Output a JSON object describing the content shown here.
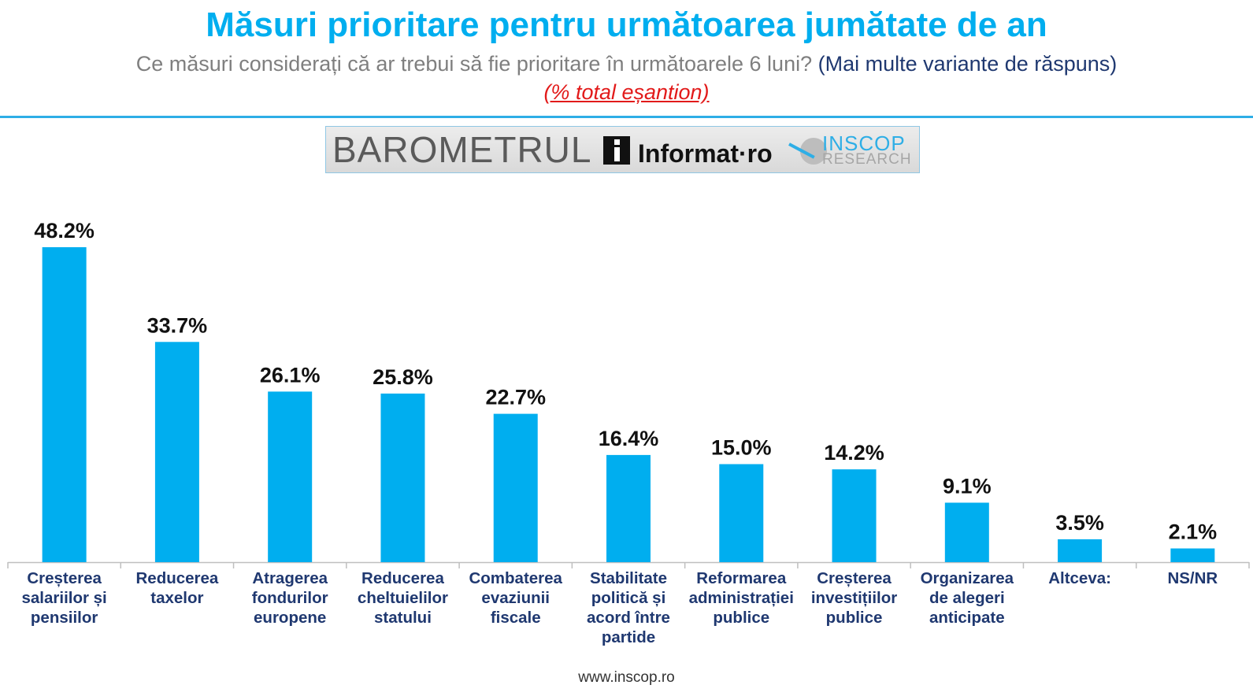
{
  "header": {
    "title": "Măsuri prioritare pentru următoarea jumătate de an",
    "subtitle_question": "Ce măsuri considerați că ar trebui să fie prioritare în următoarele 6 luni?",
    "subtitle_hint": "(Mai multe variante de răspuns)",
    "note": "(% total eșantion)"
  },
  "logos": {
    "barometrul": "BAROMETRUL",
    "informat": "Informat·ro",
    "inscop_brand": "INSCOP",
    "inscop_sub": "RESEARCH"
  },
  "footer": {
    "url": "www.inscop.ro"
  },
  "colors": {
    "bar": "#00aeef",
    "title": "#00aeef",
    "rule": "#2eaee6",
    "note": "#e21a1a"
  },
  "chart_data": {
    "type": "bar",
    "title": "Măsuri prioritare pentru următoarea jumătate de an",
    "xlabel": "",
    "ylabel": "",
    "ylim": [
      0,
      50
    ],
    "grid": false,
    "legend": "none",
    "categories": [
      [
        "Creșterea",
        "salariilor și",
        "pensiilor"
      ],
      [
        "Reducerea",
        "taxelor"
      ],
      [
        "Atragerea",
        "fondurilor",
        "europene"
      ],
      [
        "Reducerea",
        "cheltuielilor",
        "statului"
      ],
      [
        "Combaterea",
        "evaziunii",
        "fiscale"
      ],
      [
        "Stabilitate",
        "politică și",
        "acord între",
        "partide"
      ],
      [
        "Reformarea",
        "administrației",
        "publice"
      ],
      [
        "Creșterea",
        "investițiilor",
        "publice"
      ],
      [
        "Organizarea",
        "de alegeri",
        "anticipate"
      ],
      [
        "Altceva:"
      ],
      [
        "NS/NR"
      ]
    ],
    "values": [
      48.2,
      33.7,
      26.1,
      25.8,
      22.7,
      16.4,
      15.0,
      14.2,
      9.1,
      3.5,
      2.1
    ],
    "value_labels": [
      "48.2%",
      "33.7%",
      "26.1%",
      "25.8%",
      "22.7%",
      "16.4%",
      "15.0%",
      "14.2%",
      "9.1%",
      "3.5%",
      "2.1%"
    ]
  }
}
